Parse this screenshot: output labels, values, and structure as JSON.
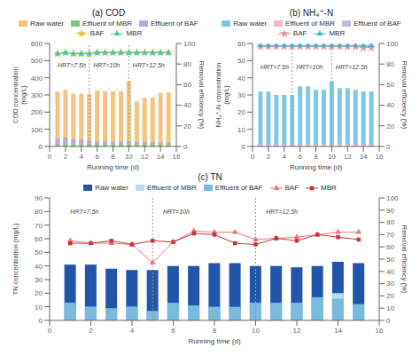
{
  "chart_data": [
    {
      "type": "bar",
      "title": "(a) COD",
      "x_label": "Running time (d)",
      "y_label": "COD concentration\n(mg/L)",
      "y2_label": "Removal efficiency (%)",
      "x": [
        1,
        2,
        3,
        4,
        5,
        6,
        7,
        8,
        9,
        10,
        11,
        12,
        13,
        14,
        15
      ],
      "xlim": [
        0,
        16
      ],
      "xticks": [
        0,
        2,
        4,
        6,
        8,
        10,
        12,
        14,
        16
      ],
      "ylim": [
        0,
        600
      ],
      "yticks": [
        0,
        100,
        200,
        300,
        400,
        500,
        600
      ],
      "y2lim": [
        0,
        100
      ],
      "y2ticks": [
        0,
        20,
        40,
        60,
        80,
        100
      ],
      "grid": false,
      "vlines": [
        5,
        10
      ],
      "annotations": [
        {
          "text": "HRT=7.5h",
          "x": 1.0,
          "y": 460
        },
        {
          "text": "HRT=10h",
          "x": 5.5,
          "y": 460
        },
        {
          "text": "HRT=12.5h",
          "x": 10.5,
          "y": 460
        }
      ],
      "series": [
        {
          "name": "Raw water",
          "type": "bar",
          "color": "#F5C47E",
          "values": [
            320,
            330,
            308,
            308,
            305,
            325,
            323,
            322,
            322,
            380,
            262,
            283,
            285,
            312,
            315
          ]
        },
        {
          "name": "Effluent of MBR",
          "type": "bar",
          "stacked": true,
          "color": "#7EC87E",
          "values": [
            15,
            12,
            13,
            13,
            12,
            12,
            12,
            12,
            12,
            12,
            12,
            12,
            12,
            12,
            12
          ]
        },
        {
          "name": "Effluent of BAF",
          "type": "bar",
          "stacked": true,
          "color": "#B8AAD8",
          "values": [
            32,
            40,
            30,
            28,
            25,
            18,
            20,
            18,
            18,
            18,
            15,
            15,
            15,
            13,
            13
          ]
        },
        {
          "name": "BAF",
          "type": "line",
          "axis": "y2",
          "marker": "star",
          "color": "#E8C040",
          "values": [
            90,
            91,
            90,
            90,
            90,
            91,
            91,
            91,
            91,
            91,
            91,
            91,
            91,
            91,
            91
          ]
        },
        {
          "name": "MBR",
          "type": "line",
          "axis": "y2",
          "marker": "triangle",
          "color": "#40C8C0",
          "values": [
            90,
            91,
            90,
            90,
            90,
            91,
            91,
            91,
            91,
            91,
            91,
            91,
            91,
            91,
            91
          ]
        }
      ]
    },
    {
      "type": "bar",
      "title": "(b) NH₄⁺-N",
      "x_label": "Running time (d)",
      "y_label": "NH₄⁺-N concentration\n(mg/L)",
      "y2_label": "Removal efficiency (%)",
      "x": [
        1,
        2,
        3,
        4,
        5,
        6,
        7,
        8,
        9,
        10,
        11,
        12,
        13,
        14,
        15
      ],
      "xlim": [
        0,
        16
      ],
      "xticks": [
        0,
        2,
        4,
        6,
        8,
        10,
        12,
        14,
        16
      ],
      "ylim": [
        0,
        60
      ],
      "yticks": [
        0,
        10,
        20,
        30,
        40,
        50,
        60
      ],
      "y2lim": [
        0,
        100
      ],
      "y2ticks": [
        0,
        20,
        40,
        60,
        80,
        100
      ],
      "grid": false,
      "vlines": [
        5,
        10
      ],
      "annotations": [
        {
          "text": "HRT=7.5h",
          "x": 1.0,
          "y": 45
        },
        {
          "text": "HRT=10h",
          "x": 5.5,
          "y": 45
        },
        {
          "text": "HRT=12.5h",
          "x": 10.5,
          "y": 45
        }
      ],
      "series": [
        {
          "name": "Raw water",
          "type": "bar",
          "color": "#7DC8E8",
          "values": [
            32,
            32,
            30,
            30,
            30,
            35,
            35,
            33,
            33,
            38,
            34,
            34,
            33,
            32,
            32
          ]
        },
        {
          "name": "Effluent of MBR",
          "type": "bar",
          "stacked": true,
          "color": "#F8B8C8",
          "values": [
            0.5,
            0.5,
            0.5,
            0.5,
            0.5,
            0.5,
            0.5,
            0.5,
            0.5,
            0.5,
            0.5,
            0.5,
            0.5,
            0.5,
            0.5
          ]
        },
        {
          "name": "Effluent of BAF",
          "type": "bar",
          "stacked": true,
          "color": "#C8B8E0",
          "values": [
            1.0,
            1.0,
            1.0,
            1.0,
            1.0,
            1.0,
            1.0,
            1.0,
            1.0,
            1.0,
            1.0,
            1.0,
            1.0,
            1.0,
            1.0
          ]
        },
        {
          "name": "BAF",
          "type": "line",
          "axis": "y2",
          "marker": "star",
          "color": "#E890A0",
          "values": [
            97,
            97,
            97,
            97,
            97,
            97,
            97,
            97,
            97,
            97,
            97,
            97,
            97,
            96,
            96
          ]
        },
        {
          "name": "MBR",
          "type": "line",
          "axis": "y2",
          "marker": "triangle",
          "color": "#40B8C8",
          "values": [
            98,
            98,
            98,
            98,
            98,
            98,
            98,
            98,
            98,
            98,
            98,
            98,
            98,
            98,
            98
          ]
        }
      ]
    },
    {
      "type": "bar",
      "title": "(c) TN",
      "x_label": "Running time (d)",
      "y_label": "TN concentration (mg/L)",
      "y2_label": "Removal efficiency (%)",
      "x": [
        1,
        2,
        3,
        4,
        5,
        6,
        7,
        8,
        9,
        10,
        11,
        12,
        13,
        14,
        15
      ],
      "xlim": [
        0,
        16
      ],
      "xticks": [
        0,
        2,
        4,
        6,
        8,
        10,
        12,
        14,
        16
      ],
      "ylim": [
        0,
        90
      ],
      "yticks": [
        0,
        10,
        20,
        30,
        40,
        50,
        60,
        70,
        80,
        90
      ],
      "y2lim": [
        0,
        100
      ],
      "y2ticks": [
        0,
        10,
        20,
        30,
        40,
        50,
        60,
        70,
        80,
        90,
        100
      ],
      "grid": false,
      "vlines": [
        5,
        10
      ],
      "annotations": [
        {
          "text": "HRT=7.5h",
          "x": 1.0,
          "y": 78
        },
        {
          "text": "HRT=10h",
          "x": 5.5,
          "y": 78
        },
        {
          "text": "HRT=12.5h",
          "x": 10.5,
          "y": 78
        }
      ],
      "series": [
        {
          "name": "Raw water",
          "type": "bar",
          "color": "#2255AA",
          "values": [
            41,
            41,
            38,
            37,
            37,
            40,
            40,
            42,
            42,
            40,
            40,
            39,
            40,
            43,
            42
          ]
        },
        {
          "name": "Effluent of MBR",
          "type": "bar",
          "color": "#B8DDF0",
          "values": [
            10,
            10,
            8,
            10,
            5,
            12,
            8,
            9,
            8,
            12,
            12,
            12,
            17,
            20,
            10
          ]
        },
        {
          "name": "Effluent of BAF",
          "type": "bar",
          "color": "#78BBDD",
          "values": [
            13,
            10,
            9,
            10,
            7,
            13,
            11,
            10,
            10,
            13,
            13,
            13,
            17,
            16,
            12
          ]
        },
        {
          "name": "BAF",
          "type": "line",
          "axis": "y2",
          "marker": "triangle",
          "color": "#E87880",
          "values": [
            65,
            63,
            63,
            62,
            47,
            64,
            73,
            72,
            72,
            66,
            67,
            68,
            70,
            72,
            72
          ]
        },
        {
          "name": "MBR",
          "type": "line",
          "axis": "y2",
          "marker": "square",
          "color": "#CC3333",
          "values": [
            63,
            63,
            65,
            62,
            65,
            64,
            71,
            70,
            63,
            62,
            67,
            65,
            70,
            68,
            66
          ]
        }
      ]
    }
  ]
}
